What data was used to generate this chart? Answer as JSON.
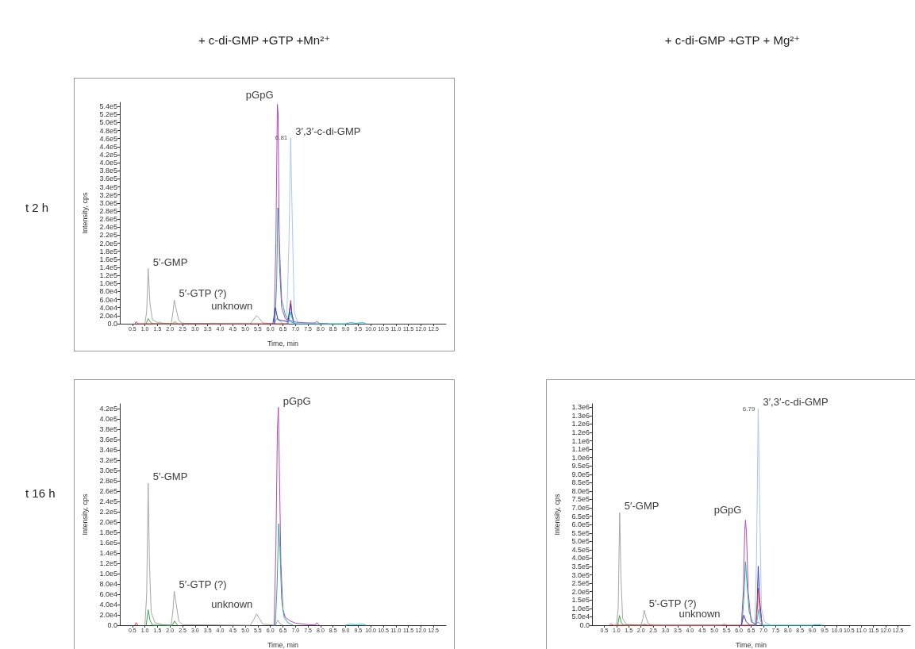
{
  "chart_data": [
    {
      "type": "line",
      "title": "+ c-di-GMP +GTP +Mn²⁺",
      "xlabel": "Time, min",
      "ylabel": "Intensity, cps",
      "marker": "none",
      "line_style": "solid",
      "annotations": [
        "t 2 h",
        {
          "text": "pGpG",
          "x": 6.28,
          "y": 545000
        },
        {
          "text": "3′,3′-c-di-GMP",
          "x": 6.81,
          "y": 462000
        },
        {
          "text": "6.81",
          "x": 6.81,
          "y": 462000
        },
        {
          "text": "5′-GMP",
          "x": 1.13,
          "y": 137000
        },
        {
          "text": "5′-GTP (?)",
          "x": 2.17,
          "y": 59000
        },
        {
          "text": "unknown",
          "x": 5.45,
          "y": 20000
        }
      ],
      "xlim": [
        0,
        13
      ],
      "ylim": [
        0,
        550000
      ],
      "xticks": [
        0.5,
        {
          "value": 1,
          "label": "1.0"
        },
        1.5,
        {
          "value": 2,
          "label": "2.0"
        },
        2.5,
        {
          "value": 3,
          "label": "3.0"
        },
        3.5,
        {
          "value": 4,
          "label": "4.0"
        },
        4.5,
        {
          "value": 5,
          "label": "5.0"
        },
        5.5,
        {
          "value": 6,
          "label": "6.0"
        },
        6.5,
        {
          "value": 7,
          "label": "7.0"
        },
        7.5,
        {
          "value": 8,
          "label": "8.0"
        },
        8.5,
        {
          "value": 9,
          "label": "9.0"
        },
        9.5,
        {
          "value": 10,
          "label": "10.0"
        },
        10.5,
        {
          "value": 11,
          "label": "11.0"
        },
        11.5,
        {
          "value": 12,
          "label": "12.0"
        },
        12.5
      ],
      "yticks": [
        {
          "value": 0,
          "label": "0.0"
        },
        {
          "value": 20000,
          "label": "2.0e4"
        },
        {
          "value": 40000,
          "label": "4.0e4"
        },
        {
          "value": 60000,
          "label": "6.0e4"
        },
        {
          "value": 80000,
          "label": "8.0e4"
        },
        {
          "value": 100000,
          "label": "1.0e5"
        },
        {
          "value": 120000,
          "label": "1.2e5"
        },
        {
          "value": 140000,
          "label": "1.4e5"
        },
        {
          "value": 160000,
          "label": "1.6e5"
        },
        {
          "value": 180000,
          "label": "1.8e5"
        },
        {
          "value": 200000,
          "label": "2.0e5"
        },
        {
          "value": 220000,
          "label": "2.2e5"
        },
        {
          "value": 240000,
          "label": "2.4e5"
        },
        {
          "value": 260000,
          "label": "2.6e5"
        },
        {
          "value": 280000,
          "label": "2.8e5"
        },
        {
          "value": 300000,
          "label": "3.0e5"
        },
        {
          "value": 320000,
          "label": "3.2e5"
        },
        {
          "value": 340000,
          "label": "3.4e5"
        },
        {
          "value": 360000,
          "label": "3.6e5"
        },
        {
          "value": 380000,
          "label": "3.8e5"
        },
        {
          "value": 400000,
          "label": "4.0e5"
        },
        {
          "value": 420000,
          "label": "4.2e5"
        },
        {
          "value": 440000,
          "label": "4.4e5"
        },
        {
          "value": 460000,
          "label": "4.6e5"
        },
        {
          "value": 480000,
          "label": "4.8e5"
        },
        {
          "value": 500000,
          "label": "5.0e5"
        },
        {
          "value": 520000,
          "label": "5.2e5"
        },
        {
          "value": 540000,
          "label": "5.4e5"
        }
      ],
      "series": [
        {
          "color": "#a6a6a6",
          "x": [
            1.0,
            1.07,
            1.13,
            1.2,
            1.3,
            1.5,
            1.6,
            1.7,
            2.05,
            2.12,
            2.17,
            2.25,
            2.35,
            2.5,
            5.2,
            5.35,
            5.45,
            5.55,
            5.7,
            6.15,
            6.28,
            6.35,
            6.5
          ],
          "values": [
            0,
            30000,
            137000,
            50000,
            10000,
            3000,
            4000,
            1000,
            0,
            30000,
            59000,
            35000,
            8000,
            1000,
            0,
            12000,
            20000,
            14000,
            2000,
            0,
            15000,
            8000,
            0
          ]
        },
        {
          "color": "#3aa84a",
          "x": [
            1.05,
            1.13,
            1.2,
            1.3,
            2.1,
            2.2,
            2.3
          ],
          "values": [
            0,
            13000,
            5000,
            0,
            0,
            5000,
            0
          ]
        },
        {
          "color": "#a9c8f0",
          "x": [
            6.65,
            6.74,
            6.81,
            6.86,
            6.95,
            7.1
          ],
          "values": [
            0,
            200000,
            462000,
            300000,
            30000,
            0
          ]
        },
        {
          "color": "#2fa896",
          "x": [
            6.18,
            6.25,
            6.3,
            6.36,
            6.45,
            6.6,
            6.8,
            7.0
          ],
          "values": [
            0,
            100000,
            288000,
            200000,
            60000,
            20000,
            5000,
            0
          ]
        },
        {
          "color": "#b04cb8",
          "x": [
            6.15,
            6.22,
            6.28,
            6.31,
            6.36,
            6.45,
            6.6,
            6.8,
            7.0,
            7.5,
            7.8,
            7.85,
            7.95,
            8.3
          ],
          "values": [
            0,
            200000,
            545000,
            520000,
            150000,
            40000,
            12000,
            8000,
            4000,
            2000,
            2000,
            6000,
            1000,
            0
          ]
        },
        {
          "color": "#e0393e",
          "x": [
            0.6,
            0.65,
            0.72,
            6.7,
            6.76,
            6.81,
            6.86,
            6.95
          ],
          "values": [
            0,
            5000,
            0,
            0,
            30000,
            58000,
            25000,
            0
          ]
        },
        {
          "color": "#3a3ac8",
          "x": [
            6.1,
            6.2,
            6.3,
            6.7,
            6.78,
            6.81,
            6.86,
            6.95
          ],
          "values": [
            0,
            40000,
            10000,
            5000,
            40000,
            50000,
            20000,
            0
          ]
        },
        {
          "color": "#22c4e0",
          "x": [
            6.72,
            6.8,
            6.86,
            6.95,
            9.0,
            9.2,
            9.4,
            9.7,
            9.8
          ],
          "values": [
            0,
            30000,
            15000,
            0,
            0,
            3000,
            1000,
            3000,
            0
          ]
        }
      ]
    },
    {
      "type": "line",
      "xlabel": "Time, min",
      "ylabel": "Intensity, cps",
      "marker": "none",
      "line_style": "solid",
      "annotations": [
        "t 16 h",
        {
          "text": "pGpG",
          "x": 6.32,
          "y": 423000
        },
        {
          "text": "5′-GMP",
          "x": 1.13,
          "y": 276000
        },
        {
          "text": "5′-GTP (?)",
          "x": 2.17,
          "y": 66000
        },
        {
          "text": "unknown",
          "x": 5.45,
          "y": 22000
        }
      ],
      "xlim": [
        0,
        13
      ],
      "ylim": [
        0,
        430000
      ],
      "xticks": [
        0.5,
        {
          "value": 1,
          "label": "1.0"
        },
        1.5,
        {
          "value": 2,
          "label": "2.0"
        },
        2.5,
        {
          "value": 3,
          "label": "3.0"
        },
        3.5,
        {
          "value": 4,
          "label": "4.0"
        },
        4.5,
        {
          "value": 5,
          "label": "5.0"
        },
        5.5,
        {
          "value": 6,
          "label": "6.0"
        },
        6.5,
        {
          "value": 7,
          "label": "7.0"
        },
        7.5,
        {
          "value": 8,
          "label": "8.0"
        },
        8.5,
        {
          "value": 9,
          "label": "9.0"
        },
        9.5,
        {
          "value": 10,
          "label": "10.0"
        },
        10.5,
        {
          "value": 11,
          "label": "11.0"
        },
        11.5,
        {
          "value": 12,
          "label": "12.0"
        },
        12.5
      ],
      "yticks": [
        {
          "value": 0,
          "label": "0.0"
        },
        {
          "value": 20000,
          "label": "2.0e4"
        },
        {
          "value": 40000,
          "label": "4.0e4"
        },
        {
          "value": 60000,
          "label": "6.0e4"
        },
        {
          "value": 80000,
          "label": "8.0e4"
        },
        {
          "value": 100000,
          "label": "1.0e5"
        },
        {
          "value": 120000,
          "label": "1.2e5"
        },
        {
          "value": 140000,
          "label": "1.4e5"
        },
        {
          "value": 160000,
          "label": "1.6e5"
        },
        {
          "value": 180000,
          "label": "1.8e5"
        },
        {
          "value": 200000,
          "label": "2.0e5"
        },
        {
          "value": 220000,
          "label": "2.2e5"
        },
        {
          "value": 240000,
          "label": "2.4e5"
        },
        {
          "value": 260000,
          "label": "2.6e5"
        },
        {
          "value": 280000,
          "label": "2.8e5"
        },
        {
          "value": 300000,
          "label": "3.0e5"
        },
        {
          "value": 320000,
          "label": "3.2e5"
        },
        {
          "value": 340000,
          "label": "3.4e5"
        },
        {
          "value": 360000,
          "label": "3.6e5"
        },
        {
          "value": 380000,
          "label": "3.8e5"
        },
        {
          "value": 400000,
          "label": "4.0e5"
        },
        {
          "value": 420000,
          "label": "4.2e5"
        }
      ],
      "series": [
        {
          "color": "#a6a6a6",
          "x": [
            1.0,
            1.07,
            1.13,
            1.18,
            1.25,
            1.4,
            1.7,
            2.05,
            2.12,
            2.17,
            2.25,
            2.35,
            2.5,
            5.2,
            5.35,
            5.45,
            5.55,
            5.7,
            6.2,
            6.3,
            6.38,
            6.5
          ],
          "values": [
            0,
            60000,
            276000,
            120000,
            25000,
            5000,
            1000,
            0,
            30000,
            66000,
            40000,
            8000,
            1000,
            0,
            12000,
            22000,
            14000,
            2000,
            0,
            10000,
            3000,
            0
          ]
        },
        {
          "color": "#3aa84a",
          "x": [
            1.05,
            1.13,
            1.2,
            1.3,
            2.1,
            2.18,
            2.3
          ],
          "values": [
            0,
            30000,
            10000,
            0,
            0,
            8000,
            0
          ]
        },
        {
          "color": "#b04cb8",
          "x": [
            6.15,
            6.22,
            6.28,
            6.32,
            6.36,
            6.42,
            6.5,
            6.6,
            6.8,
            7.0,
            7.5,
            7.8,
            7.85,
            7.95
          ],
          "values": [
            0,
            150000,
            380000,
            423000,
            300000,
            120000,
            30000,
            15000,
            8000,
            4000,
            1000,
            1000,
            5000,
            0
          ]
        },
        {
          "color": "#2fa896",
          "x": [
            6.2,
            6.27,
            6.33,
            6.38,
            6.45,
            6.55,
            6.7,
            6.9
          ],
          "values": [
            0,
            80000,
            197000,
            150000,
            50000,
            15000,
            5000,
            0
          ]
        },
        {
          "color": "#e0393e",
          "x": [
            0.6,
            0.65,
            0.72
          ],
          "values": [
            0,
            5000,
            0
          ]
        },
        {
          "color": "#22c4e0",
          "x": [
            9.0,
            9.2,
            9.4,
            9.7,
            9.8
          ],
          "values": [
            0,
            2000,
            1000,
            2000,
            0
          ]
        }
      ]
    },
    {
      "type": "line",
      "title": "+ c-di-GMP +GTP + Mg²⁺",
      "xlabel": "Time, min",
      "ylabel": "Intensity, cps",
      "marker": "none",
      "line_style": "solid",
      "annotations": [
        {
          "text": "3′,3′-c-di-GMP",
          "x": 6.79,
          "y": 1290000
        },
        {
          "text": "6.79",
          "x": 6.79,
          "y": 1290000
        },
        {
          "text": "pGpG",
          "x": 6.27,
          "y": 627000
        },
        {
          "text": "5′-GMP",
          "x": 1.13,
          "y": 671000
        },
        {
          "text": "5′-GTP (?)",
          "x": 2.13,
          "y": 89000
        },
        {
          "text": "unknown",
          "x": 5.4,
          "y": 8000
        }
      ],
      "xlim": [
        0,
        13
      ],
      "ylim": [
        0,
        1320000
      ],
      "xticks": [
        0.5,
        {
          "value": 1,
          "label": "1.0"
        },
        1.5,
        {
          "value": 2,
          "label": "2.0"
        },
        2.5,
        {
          "value": 3,
          "label": "3.0"
        },
        3.5,
        {
          "value": 4,
          "label": "4.0"
        },
        4.5,
        {
          "value": 5,
          "label": "5.0"
        },
        5.5,
        {
          "value": 6,
          "label": "6.0"
        },
        6.5,
        {
          "value": 7,
          "label": "7.0"
        },
        7.5,
        {
          "value": 8,
          "label": "8.0"
        },
        8.5,
        {
          "value": 9,
          "label": "9.0"
        },
        9.5,
        {
          "value": 10,
          "label": "10.0"
        },
        10.5,
        {
          "value": 11,
          "label": "11.0"
        },
        11.5,
        {
          "value": 12,
          "label": "12.0"
        },
        12.5
      ],
      "yticks": [
        {
          "value": 0,
          "label": "0.0"
        },
        {
          "value": 50000,
          "label": "5.0e4"
        },
        {
          "value": 100000,
          "label": "1.0e5"
        },
        {
          "value": 150000,
          "label": "1.5e5"
        },
        {
          "value": 200000,
          "label": "2.0e5"
        },
        {
          "value": 250000,
          "label": "2.5e5"
        },
        {
          "value": 300000,
          "label": "3.0e5"
        },
        {
          "value": 350000,
          "label": "3.5e5"
        },
        {
          "value": 400000,
          "label": "4.0e5"
        },
        {
          "value": 450000,
          "label": "4.5e5"
        },
        {
          "value": 500000,
          "label": "5.0e5"
        },
        {
          "value": 550000,
          "label": "5.5e5"
        },
        {
          "value": 600000,
          "label": "6.0e5"
        },
        {
          "value": 650000,
          "label": "6.5e5"
        },
        {
          "value": 700000,
          "label": "7.0e5"
        },
        {
          "value": 750000,
          "label": "7.5e5"
        },
        {
          "value": 800000,
          "label": "8.0e5"
        },
        {
          "value": 850000,
          "label": "8.5e5"
        },
        {
          "value": 900000,
          "label": "9.0e5"
        },
        {
          "value": 950000,
          "label": "9.5e5"
        },
        {
          "value": 1000000,
          "label": "1.0e6"
        },
        {
          "value": 1050000,
          "label": "1.1e6"
        },
        {
          "value": 1100000,
          "label": "1.1e6"
        },
        {
          "value": 1150000,
          "label": "1.2e6"
        },
        {
          "value": 1200000,
          "label": "1.2e6"
        },
        {
          "value": 1250000,
          "label": "1.3e6"
        },
        {
          "value": 1300000,
          "label": "1.3e6"
        }
      ],
      "series": [
        {
          "color": "#a6a6a6",
          "x": [
            1.0,
            1.07,
            1.13,
            1.18,
            1.25,
            1.4,
            2.0,
            2.08,
            2.13,
            2.2,
            2.3,
            2.5,
            5.3,
            5.4,
            5.5
          ],
          "values": [
            0,
            100000,
            671000,
            300000,
            40000,
            5000,
            0,
            40000,
            89000,
            50000,
            8000,
            0,
            0,
            8000,
            0
          ]
        },
        {
          "color": "#3aa84a",
          "x": [
            1.05,
            1.12,
            1.2,
            1.3,
            2.05,
            2.13,
            2.25
          ],
          "values": [
            0,
            58000,
            15000,
            0,
            0,
            6000,
            0
          ]
        },
        {
          "color": "#a9c8f0",
          "x": [
            6.65,
            6.72,
            6.79,
            6.84,
            6.92,
            7.05,
            7.3
          ],
          "values": [
            0,
            400000,
            1290000,
            800000,
            100000,
            20000,
            0
          ]
        },
        {
          "color": "#b04cb8",
          "x": [
            6.1,
            6.18,
            6.24,
            6.27,
            6.31,
            6.38,
            6.5,
            6.7,
            6.79,
            6.88,
            7.0
          ],
          "values": [
            0,
            200000,
            560000,
            627000,
            550000,
            200000,
            20000,
            5000,
            20000,
            5000,
            0
          ]
        },
        {
          "color": "#2fa896",
          "x": [
            6.12,
            6.2,
            6.27,
            6.33,
            6.42,
            6.55,
            6.7
          ],
          "values": [
            0,
            150000,
            377000,
            250000,
            80000,
            20000,
            0
          ]
        },
        {
          "color": "#3a3ac8",
          "x": [
            6.1,
            6.2,
            6.3,
            6.45,
            6.7,
            6.75,
            6.79,
            6.85,
            6.95
          ],
          "values": [
            0,
            60000,
            20000,
            0,
            0,
            150000,
            352000,
            150000,
            0
          ]
        },
        {
          "color": "#e0393e",
          "x": [
            0.7,
            0.76,
            0.85,
            6.7,
            6.75,
            6.79,
            6.85,
            6.95
          ],
          "values": [
            0,
            8000,
            0,
            0,
            100000,
            220000,
            100000,
            0
          ]
        },
        {
          "color": "#22c4e0",
          "x": [
            6.7,
            6.76,
            6.8,
            6.86,
            6.95,
            9.0,
            9.2,
            9.4
          ],
          "values": [
            0,
            40000,
            93000,
            40000,
            0,
            0,
            4000,
            0
          ]
        }
      ]
    }
  ]
}
